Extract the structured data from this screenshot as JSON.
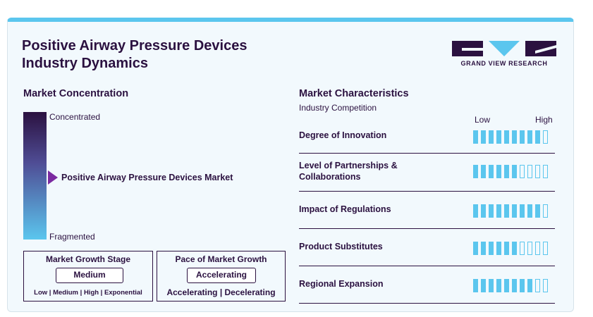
{
  "header": {
    "title_line1": "Positive Airway Pressure Devices",
    "title_line2": "Industry Dynamics",
    "logo_text": "GRAND VIEW RESEARCH",
    "colors": {
      "dark": "#2b1140",
      "accent": "#5bc6ee",
      "marker": "#7b2aa0"
    }
  },
  "concentration": {
    "title": "Market Concentration",
    "top_label": "Concentrated",
    "bottom_label": "Fragmented",
    "marker_label": "Positive Airway Pressure Devices Market"
  },
  "growth_stage": {
    "title": "Market Growth Stage",
    "value": "Medium",
    "scale": [
      "Low",
      "Medium",
      "High",
      "Exponential"
    ]
  },
  "growth_pace": {
    "title": "Pace of Market Growth",
    "value": "Accelerating",
    "scale": [
      "Accelerating",
      "Decelerating"
    ]
  },
  "characteristics": {
    "title": "Market Characteristics",
    "subtitle": "Industry Competition",
    "low_label": "Low",
    "high_label": "High",
    "max_level": 10,
    "rows": [
      {
        "label": "Degree of Innovation",
        "level": 9
      },
      {
        "label": "Level of Partnerships & Collaborations",
        "level": 6
      },
      {
        "label": "Impact of Regulations",
        "level": 9
      },
      {
        "label": "Product Substitutes",
        "level": 6
      },
      {
        "label": "Regional Expansion",
        "level": 8
      }
    ]
  }
}
